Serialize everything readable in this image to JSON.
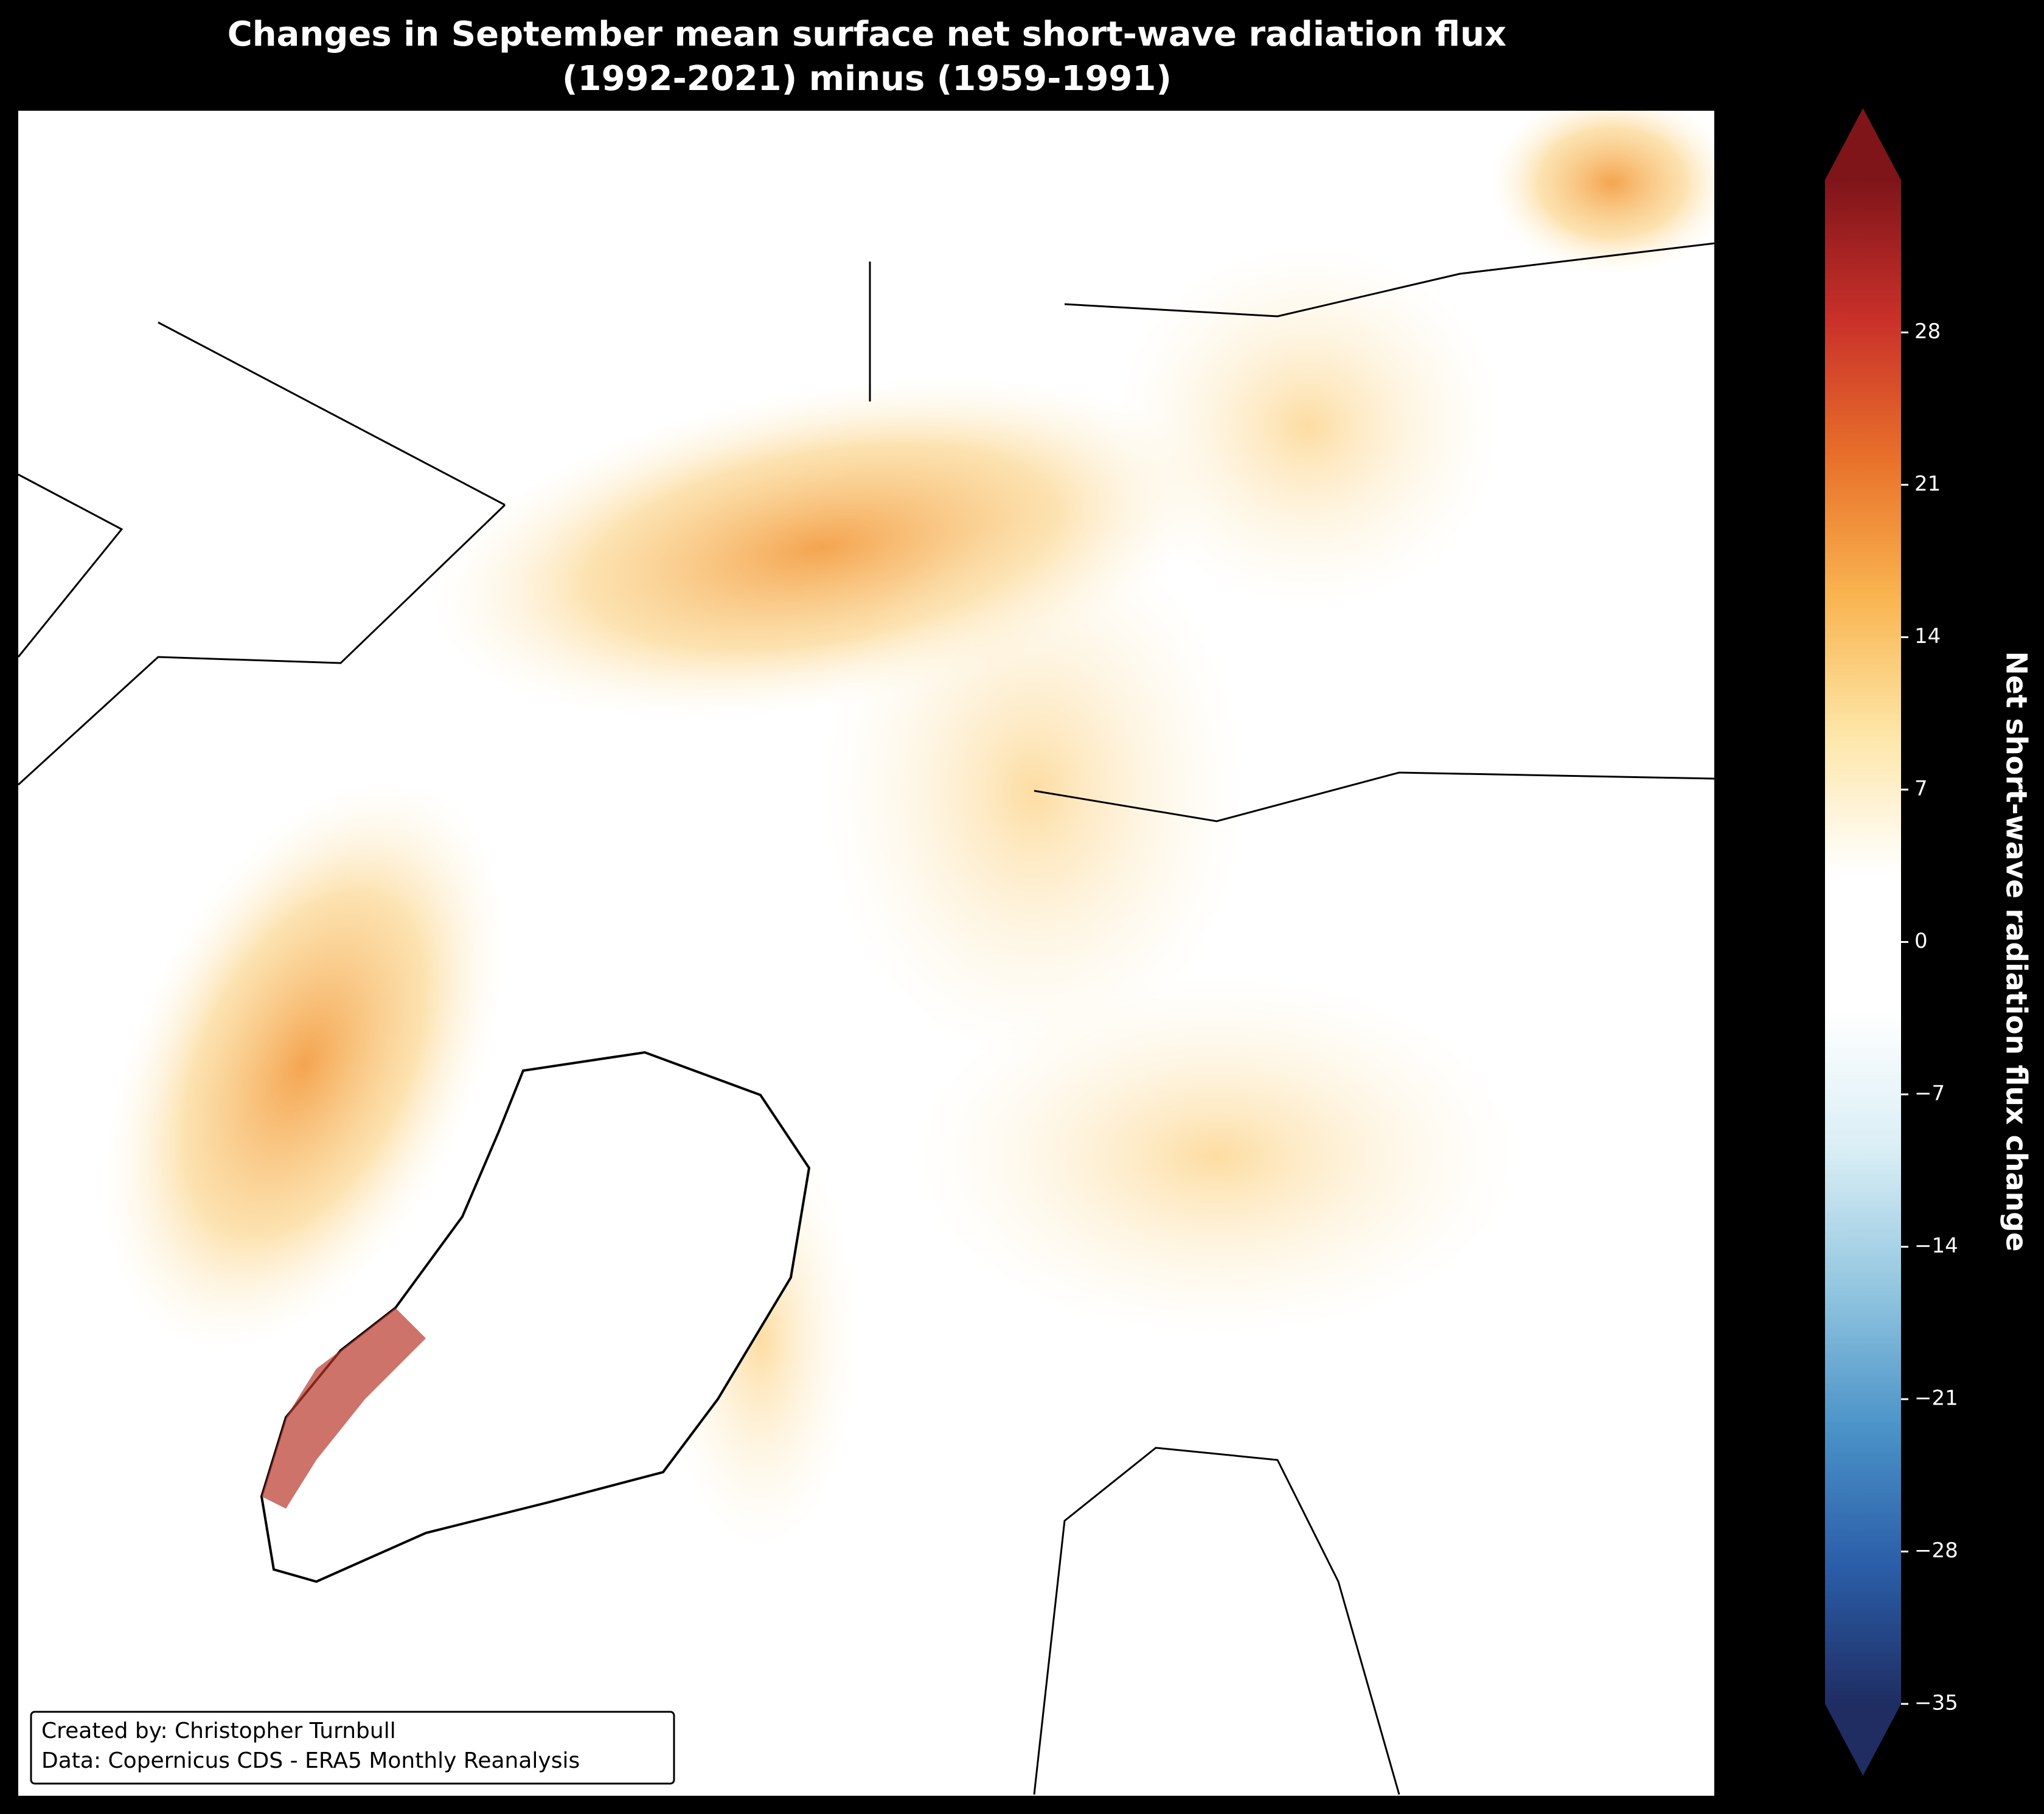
{
  "chart_data": {
    "type": "map",
    "title": [
      "Changes in September mean surface net short-wave radiation flux",
      "(1992-2021) minus (1959-1991)"
    ],
    "colorbar": {
      "label": "Net short-wave radiation flux change",
      "lim": [
        -35,
        35
      ],
      "ticks": [
        {
          "value": -35,
          "label": "−35"
        },
        {
          "value": -28,
          "label": "−28"
        },
        {
          "value": -21,
          "label": "−21"
        },
        {
          "value": -14,
          "label": "−14"
        },
        {
          "value": -7,
          "label": "−7"
        },
        0,
        7,
        14,
        21,
        28
      ],
      "extend": "both",
      "colormap": [
        "#1f2d63",
        "#2b5ea8",
        "#4b93c8",
        "#93c6e0",
        "#d9eef5",
        "#ffffff",
        "#ffffff",
        "#fde6a8",
        "#f9b44f",
        "#e8702a",
        "#c9302a",
        "#7f1519"
      ]
    },
    "credits": [
      "Created by: Christopher Turnbull",
      "Data: Copernicus CDS - ERA5 Monthly Reanalysis"
    ]
  }
}
